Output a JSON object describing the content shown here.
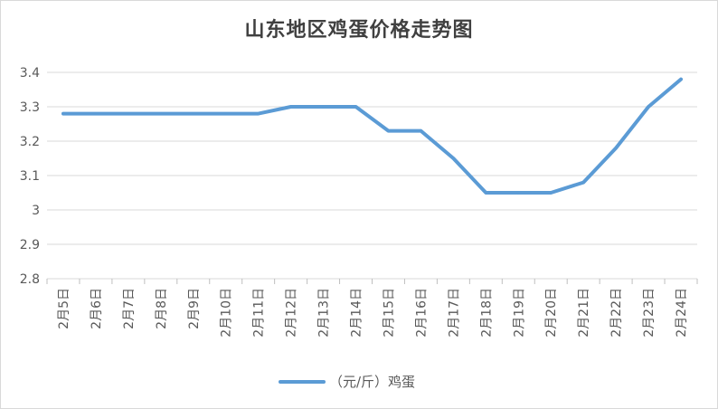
{
  "chart_data": {
    "type": "line",
    "title": "山东地区鸡蛋价格走势图",
    "categories": [
      "2月5日",
      "2月6日",
      "2月7日",
      "2月8日",
      "2月9日",
      "2月10日",
      "2月11日",
      "2月12日",
      "2月13日",
      "2月14日",
      "2月15日",
      "2月16日",
      "2月17日",
      "2月18日",
      "2月19日",
      "2月20日",
      "2月21日",
      "2月22日",
      "2月23日",
      "2月24日"
    ],
    "series": [
      {
        "name": "（元/斤）鸡蛋",
        "color": "#5B9BD5",
        "values": [
          3.28,
          3.28,
          3.28,
          3.28,
          3.28,
          3.28,
          3.28,
          3.3,
          3.3,
          3.3,
          3.23,
          3.23,
          3.15,
          3.05,
          3.05,
          3.05,
          3.08,
          3.18,
          3.3,
          3.38
        ]
      }
    ],
    "ylim": [
      2.8,
      3.4
    ],
    "yticks": [
      "2.8",
      "2.9",
      "3",
      "3.1",
      "3.2",
      "3.3",
      "3.4"
    ],
    "grid": true,
    "legend_position": "bottom",
    "xlabel": "",
    "ylabel": ""
  }
}
